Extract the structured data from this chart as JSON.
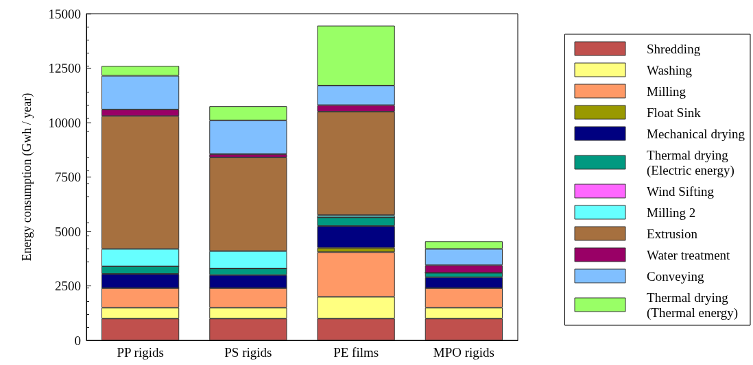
{
  "chart_data": {
    "type": "bar",
    "stacked": true,
    "ylabel": "Energy consumption (Gwh / year)",
    "categories": [
      "PP rigids",
      "PS rigids",
      "PE films",
      "MPO rigids"
    ],
    "ylim": [
      0,
      15000
    ],
    "yticks": [
      0,
      2500,
      5000,
      7500,
      10000,
      12500,
      15000
    ],
    "grid": false,
    "legend": "right",
    "series": [
      {
        "name": "Shredding",
        "color": "#c0504d",
        "values": [
          1000,
          1000,
          1000,
          1000
        ]
      },
      {
        "name": "Washing",
        "color": "#ffff80",
        "values": [
          500,
          500,
          1000,
          500
        ]
      },
      {
        "name": "Milling",
        "color": "#ff9966",
        "values": [
          900,
          900,
          2050,
          900
        ]
      },
      {
        "name": "Float Sink",
        "color": "#999900",
        "values": [
          0,
          0,
          200,
          0
        ]
      },
      {
        "name": "Mechanical drying",
        "color": "#000080",
        "values": [
          650,
          600,
          1000,
          500
        ]
      },
      {
        "name": "Thermal drying\n(Electric energy)",
        "color": "#009980",
        "values": [
          350,
          300,
          400,
          200
        ]
      },
      {
        "name": "Wind Sifting",
        "color": "#ff66ff",
        "values": [
          0,
          0,
          0,
          0
        ]
      },
      {
        "name": "Milling 2",
        "color": "#66ffff",
        "values": [
          800,
          800,
          100,
          0
        ]
      },
      {
        "name": "Extrusion",
        "color": "#a6703f",
        "values": [
          6100,
          4300,
          4750,
          0
        ]
      },
      {
        "name": "Water treatment",
        "color": "#990066",
        "values": [
          300,
          150,
          300,
          350
        ]
      },
      {
        "name": "Conveying",
        "color": "#80bfff",
        "values": [
          1550,
          1550,
          900,
          750
        ]
      },
      {
        "name": "Thermal drying\n(Thermal energy)",
        "color": "#99ff66",
        "values": [
          450,
          650,
          2750,
          350
        ]
      }
    ]
  }
}
